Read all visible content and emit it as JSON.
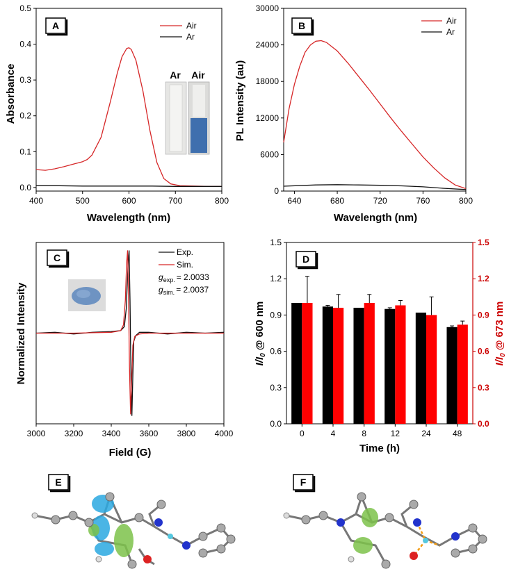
{
  "colors": {
    "air": "#d62728",
    "ar": "#111111",
    "bar_red": "#ff0000",
    "axis_red": "#cc0000"
  },
  "chart_data": [
    {
      "panel": "A",
      "type": "line",
      "xlabel": "Wavelength (nm)",
      "ylabel": "Absorbance",
      "xlim": [
        400,
        800
      ],
      "ylim": [
        -0.01,
        0.5
      ],
      "xticks": [
        400,
        500,
        600,
        700,
        800
      ],
      "yticks": [
        0.0,
        0.1,
        0.2,
        0.3,
        0.4,
        0.5
      ],
      "legend": "top-right",
      "inset_labels": [
        "Ar",
        "Air"
      ],
      "series": [
        {
          "name": "Air",
          "color": "#d62728",
          "x": [
            400,
            420,
            440,
            460,
            480,
            500,
            510,
            520,
            540,
            560,
            575,
            585,
            595,
            600,
            605,
            615,
            630,
            645,
            660,
            675,
            690,
            710,
            740,
            770,
            800
          ],
          "y": [
            0.05,
            0.048,
            0.052,
            0.058,
            0.065,
            0.072,
            0.078,
            0.09,
            0.14,
            0.24,
            0.32,
            0.365,
            0.388,
            0.39,
            0.385,
            0.355,
            0.27,
            0.16,
            0.07,
            0.025,
            0.01,
            0.005,
            0.004,
            0.003,
            0.003
          ]
        },
        {
          "name": "Ar",
          "color": "#111111",
          "x": [
            400,
            450,
            500,
            550,
            600,
            650,
            700,
            750,
            800
          ],
          "y": [
            0.005,
            0.005,
            0.004,
            0.004,
            0.004,
            0.004,
            0.003,
            0.003,
            0.003
          ]
        }
      ]
    },
    {
      "panel": "B",
      "type": "line",
      "xlabel": "Wavelength (nm)",
      "ylabel": "PL Intensity (au)",
      "xlim": [
        630,
        800
      ],
      "ylim": [
        0,
        30000
      ],
      "xticks": [
        640,
        680,
        720,
        760,
        800
      ],
      "yticks": [
        0,
        6000,
        12000,
        18000,
        24000,
        30000
      ],
      "legend": "top-right",
      "series": [
        {
          "name": "Air",
          "color": "#d62728",
          "x": [
            630,
            635,
            640,
            645,
            650,
            655,
            660,
            665,
            670,
            680,
            690,
            700,
            710,
            720,
            730,
            740,
            750,
            760,
            770,
            780,
            790,
            800
          ],
          "y": [
            8000,
            13500,
            17500,
            20500,
            22800,
            24000,
            24600,
            24700,
            24400,
            23000,
            21000,
            18800,
            16600,
            14300,
            12000,
            9800,
            7700,
            5600,
            3800,
            2200,
            1000,
            400
          ]
        },
        {
          "name": "Ar",
          "color": "#111111",
          "x": [
            630,
            660,
            680,
            700,
            720,
            740,
            760,
            780,
            800
          ],
          "y": [
            800,
            1000,
            1050,
            1000,
            950,
            850,
            700,
            450,
            250
          ]
        }
      ]
    },
    {
      "panel": "C",
      "type": "line",
      "xlabel": "Field (G)",
      "ylabel": "Normalized Intensity",
      "xlim": [
        3000,
        4000
      ],
      "ylim": [
        -1.1,
        1.1
      ],
      "xticks": [
        3000,
        3200,
        3400,
        3600,
        3800,
        4000
      ],
      "legend": "top-right",
      "g_exp_label": "g",
      "g_exp_sub": "exp.",
      "g_exp_value": "= 2.0033",
      "g_sim_label": "g",
      "g_sim_sub": "sim.",
      "g_sim_value": "= 2.0037",
      "series": [
        {
          "name": "Exp.",
          "color": "#111111",
          "x": [
            3000,
            3100,
            3200,
            3300,
            3400,
            3450,
            3470,
            3480,
            3490,
            3495,
            3500,
            3505,
            3510,
            3515,
            3520,
            3530,
            3550,
            3600,
            3700,
            3800,
            3900,
            4000
          ],
          "y": [
            0,
            0.01,
            -0.01,
            0.01,
            0.02,
            0.03,
            0.08,
            0.3,
            0.85,
            1.0,
            0.4,
            -0.5,
            -1.0,
            -0.5,
            -0.1,
            -0.03,
            0.01,
            0.01,
            -0.01,
            0.01,
            0,
            0.01
          ]
        },
        {
          "name": "Sim.",
          "color": "#d62728",
          "x": [
            3000,
            3200,
            3400,
            3450,
            3465,
            3475,
            3482,
            3487,
            3492,
            3497,
            3503,
            3508,
            3515,
            3525,
            3550,
            3600,
            3800,
            4000
          ],
          "y": [
            0,
            0,
            0.01,
            0.03,
            0.1,
            0.4,
            0.85,
            1.0,
            0.5,
            -0.4,
            -0.98,
            -0.6,
            -0.15,
            -0.04,
            -0.01,
            0,
            0,
            0
          ]
        }
      ]
    },
    {
      "panel": "D",
      "type": "bar",
      "xlabel": "Time (h)",
      "ylabel_left": "I/I",
      "ylabel_left_sub": "0",
      "ylabel_left_tail": " @ 600 nm",
      "ylabel_right": "I/I",
      "ylabel_right_sub": "0",
      "ylabel_right_tail": " @ 673 nm",
      "categories": [
        "0",
        "4",
        "8",
        "12",
        "24",
        "48"
      ],
      "ylim": [
        0,
        1.5
      ],
      "yticks": [
        0.0,
        0.3,
        0.6,
        0.9,
        1.2,
        1.5
      ],
      "series": [
        {
          "axis": "left",
          "color": "#000000",
          "values": [
            1.0,
            0.97,
            0.96,
            0.95,
            0.92,
            0.8
          ],
          "errors": [
            0.0,
            0.01,
            0.0,
            0.01,
            0.0,
            0.01
          ]
        },
        {
          "axis": "right",
          "color": "#ff0000",
          "values": [
            1.0,
            0.96,
            1.0,
            0.98,
            0.9,
            0.82
          ],
          "errors": [
            0.22,
            0.11,
            0.07,
            0.04,
            0.15,
            0.03
          ]
        }
      ]
    }
  ],
  "panels": {
    "a": "A",
    "b": "B",
    "c": "C",
    "d": "D",
    "e": "E",
    "f": "F"
  }
}
